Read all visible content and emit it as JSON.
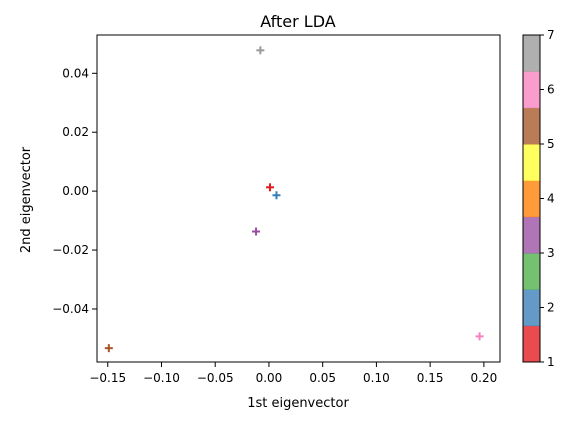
{
  "chart_data": {
    "type": "scatter",
    "title": "After LDA",
    "xlabel": "1st eigenvector",
    "ylabel": "2nd eigenvector",
    "xlim": [
      -0.16,
      0.215
    ],
    "ylim": [
      -0.058,
      0.053
    ],
    "xticks": [
      -0.15,
      -0.1,
      -0.05,
      0.0,
      0.05,
      0.1,
      0.15,
      0.2
    ],
    "xtick_labels": [
      "−0.15",
      "−0.10",
      "−0.05",
      "0.00",
      "0.05",
      "0.10",
      "0.15",
      "0.20"
    ],
    "yticks": [
      -0.04,
      -0.02,
      0.0,
      0.02,
      0.04
    ],
    "ytick_labels": [
      "−0.04",
      "−0.02",
      "0.00",
      "0.02",
      "0.04"
    ],
    "marker": "+",
    "grid": false,
    "points": [
      {
        "x": 0.001,
        "y": 0.0013,
        "class": 1,
        "color": "#e41a1c"
      },
      {
        "x": 0.007,
        "y": -0.0014,
        "class": 2,
        "color": "#377eb8"
      },
      {
        "x": -0.012,
        "y": -0.0137,
        "class": 3,
        "color": "#984ea3"
      },
      {
        "x": -0.149,
        "y": -0.0533,
        "class": 6,
        "color": "#a65628"
      },
      {
        "x": 0.196,
        "y": -0.0493,
        "class": 7,
        "color": "#f781bf"
      },
      {
        "x": -0.008,
        "y": 0.0478,
        "class": 8,
        "color": "#999999"
      }
    ],
    "colorbar": {
      "range": [
        1,
        7
      ],
      "ticks": [
        1,
        2,
        3,
        4,
        5,
        6,
        7
      ],
      "tick_labels": [
        "1",
        "2",
        "3",
        "4",
        "5",
        "6",
        "7"
      ],
      "colors": [
        "#e41a1c",
        "#377eb8",
        "#4daf4a",
        "#984ea3",
        "#ff7f00",
        "#ffff33",
        "#a65628",
        "#f781bf",
        "#999999"
      ]
    }
  }
}
